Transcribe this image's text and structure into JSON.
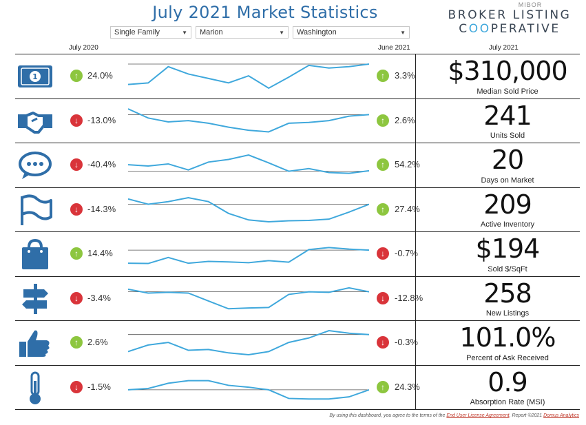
{
  "title": "July 2021 Market Statistics",
  "filters": {
    "property_type": "Single Family",
    "county": "Marion",
    "township": "Washington"
  },
  "logo": {
    "top": "MIBOR",
    "line1": "BROKER LISTING",
    "line2_a": "C",
    "line2_oo": "OO",
    "line2_b": "PERATIVE"
  },
  "headers": {
    "left": "July 2020",
    "mid": "June 2021",
    "right": "July 2021"
  },
  "colors": {
    "up": "#8dc63f",
    "down": "#d9343a",
    "line": "#3fa8dc",
    "icon": "#2f6ea8"
  },
  "rows": [
    {
      "icon": "money-icon",
      "yoy": "24.0%",
      "yoy_dir": "up",
      "mom": "3.3%",
      "mom_dir": "up",
      "value": "$310,000",
      "label": "Median Sold Price",
      "spark": [
        0.78,
        0.72,
        0.1,
        0.38,
        0.55,
        0.72,
        0.45,
        0.92,
        0.5,
        0.05,
        0.15,
        0.1,
        0.0
      ],
      "ref": 0.0
    },
    {
      "icon": "handshake-icon",
      "yoy": "-13.0%",
      "yoy_dir": "down",
      "mom": "2.6%",
      "mom_dir": "up",
      "value": "241",
      "label": "Units Sold",
      "spark": [
        0.0,
        0.35,
        0.5,
        0.45,
        0.55,
        0.7,
        0.82,
        0.88,
        0.55,
        0.52,
        0.45,
        0.28,
        0.22
      ],
      "ref": 0.22
    },
    {
      "icon": "chat-icon",
      "yoy": "-40.4%",
      "yoy_dir": "down",
      "mom": "54.2%",
      "mom_dir": "up",
      "value": "20",
      "label": "Days on Market",
      "spark": [
        0.45,
        0.5,
        0.42,
        0.65,
        0.35,
        0.25,
        0.08,
        0.38,
        0.7,
        0.6,
        0.75,
        0.78,
        0.68
      ],
      "ref": 0.7
    },
    {
      "icon": "flag-icon",
      "yoy": "-14.3%",
      "yoy_dir": "down",
      "mom": "27.4%",
      "mom_dir": "up",
      "value": "209",
      "label": "Active Inventory",
      "spark": [
        0.05,
        0.25,
        0.15,
        0.0,
        0.15,
        0.6,
        0.85,
        0.92,
        0.88,
        0.87,
        0.82,
        0.55,
        0.25
      ],
      "ref": 0.25
    },
    {
      "icon": "shopping-bag-icon",
      "yoy": "14.4%",
      "yoy_dir": "up",
      "mom": "-0.7%",
      "mom_dir": "down",
      "value": "$194",
      "label": "Sold $/SqFt",
      "spark": [
        0.82,
        0.83,
        0.6,
        0.82,
        0.75,
        0.77,
        0.8,
        0.72,
        0.78,
        0.3,
        0.22,
        0.28,
        0.32
      ],
      "ref": 0.32
    },
    {
      "icon": "signpost-icon",
      "yoy": "-3.4%",
      "yoy_dir": "down",
      "mom": "-12.8%",
      "mom_dir": "down",
      "value": "258",
      "label": "New Listings",
      "spark": [
        0.1,
        0.25,
        0.22,
        0.25,
        0.55,
        0.85,
        0.82,
        0.8,
        0.3,
        0.2,
        0.22,
        0.05,
        0.2
      ],
      "ref": 0.2
    },
    {
      "icon": "thumbs-up-icon",
      "yoy": "2.6%",
      "yoy_dir": "up",
      "mom": "-0.3%",
      "mom_dir": "down",
      "value": "101.0%",
      "label": "Percent of Ask Received",
      "spark": [
        0.8,
        0.55,
        0.45,
        0.75,
        0.72,
        0.85,
        0.92,
        0.8,
        0.45,
        0.28,
        0.0,
        0.1,
        0.15
      ],
      "ref": 0.15
    },
    {
      "icon": "thermometer-icon",
      "yoy": "-1.5%",
      "yoy_dir": "down",
      "mom": "24.3%",
      "mom_dir": "up",
      "value": "0.9",
      "label": "Absorption Rate (MSI)",
      "spark": [
        0.55,
        0.5,
        0.3,
        0.2,
        0.2,
        0.38,
        0.45,
        0.55,
        0.88,
        0.9,
        0.9,
        0.82,
        0.55
      ],
      "ref": 0.55
    }
  ],
  "footer": {
    "prefix": "By using this dashboard, you agree to the terms of the",
    "eula": "End User License Agreement",
    "middle": ".  Report ©2021",
    "vendor": "Domus Analytics"
  }
}
